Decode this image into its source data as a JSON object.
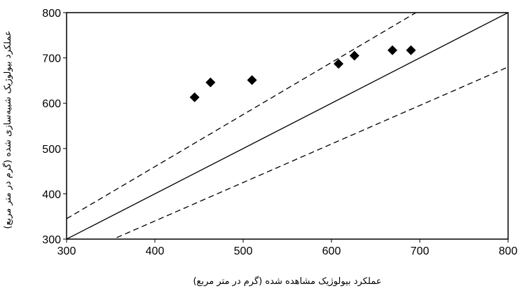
{
  "chart_data": {
    "type": "scatter",
    "title": "",
    "xlabel": "عملکرد بیولوژیک مشاهده شده (گرم در متر مربع)",
    "ylabel": "عملکرد بیولوژیک شبیه‌سازی شده (گرم در متر مربع)",
    "xlim": [
      300,
      800
    ],
    "ylim": [
      300,
      800
    ],
    "x_ticks": [
      "300",
      "400",
      "500",
      "600",
      "700",
      "800"
    ],
    "y_ticks": [
      "300",
      "400",
      "500",
      "600",
      "700",
      "800"
    ],
    "grid": false,
    "marker": "diamond",
    "marker_color": "#000000",
    "series": [
      {
        "x": [
          445,
          463,
          510,
          608,
          626,
          669,
          690
        ],
        "y": [
          613,
          646,
          651,
          687,
          705,
          717,
          717
        ]
      }
    ],
    "reference_lines": [
      {
        "style": "solid",
        "points": [
          [
            300,
            300
          ],
          [
            800,
            800
          ]
        ]
      },
      {
        "style": "dashed",
        "points": [
          [
            300,
            345
          ],
          [
            800,
            920
          ]
        ]
      },
      {
        "style": "dashed",
        "points": [
          [
            300,
            255
          ],
          [
            800,
            680
          ]
        ]
      }
    ]
  }
}
